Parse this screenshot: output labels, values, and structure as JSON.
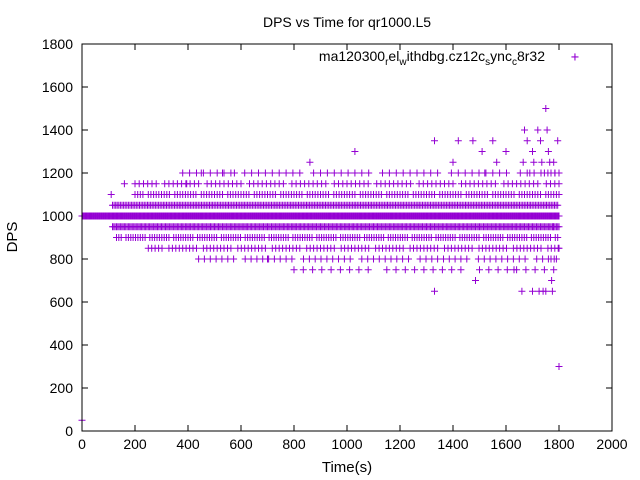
{
  "chart_data": {
    "type": "scatter",
    "title": "DPS vs Time for qr1000.L5",
    "xlabel": "Time(s)",
    "ylabel": "DPS",
    "xlim": [
      0,
      2000
    ],
    "ylim": [
      0,
      1800
    ],
    "xticks": [
      0,
      200,
      400,
      600,
      800,
      1000,
      1200,
      1400,
      1600,
      1800,
      2000
    ],
    "yticks": [
      0,
      200,
      400,
      600,
      800,
      1000,
      1200,
      1400,
      1600,
      1800
    ],
    "grid": false,
    "legend": {
      "position": "top-right",
      "label": "ma120300_rel_withdbg.cz12c_sync_c8r32",
      "label_parts": [
        {
          "text": "ma120300",
          "sub": false
        },
        {
          "text": "r",
          "sub": true
        },
        {
          "text": "el",
          "sub": false
        },
        {
          "text": "w",
          "sub": true
        },
        {
          "text": "ithdbg.cz12c",
          "sub": false
        },
        {
          "text": "s",
          "sub": true
        },
        {
          "text": "ync",
          "sub": false
        },
        {
          "text": "c",
          "sub": true
        },
        {
          "text": "8r32",
          "sub": false
        }
      ]
    },
    "series": [
      {
        "name": "ma120300_rel_withdbg.cz12c_sync_c8r32",
        "color": "#9400d3",
        "marker": "plus",
        "dense_bands": [
          {
            "y": 1000,
            "x_start": 0,
            "x_end": 1800,
            "step": 3
          },
          {
            "y": 950,
            "x_start": 115,
            "x_end": 1800,
            "step": 5
          },
          {
            "y": 1050,
            "x_start": 115,
            "x_end": 1800,
            "step": 6
          },
          {
            "y": 900,
            "x_start": 130,
            "x_end": 1800,
            "step": 9
          },
          {
            "y": 1100,
            "x_start": 200,
            "x_end": 1800,
            "step": 10
          },
          {
            "y": 850,
            "x_start": 250,
            "x_end": 1800,
            "step": 13
          },
          {
            "y": 1150,
            "x_start": 200,
            "x_end": 1800,
            "step": 16
          },
          {
            "y": 800,
            "x_start": 440,
            "x_end": 1800,
            "step": 22
          },
          {
            "y": 1200,
            "x_start": 380,
            "x_end": 1800,
            "step": 26
          },
          {
            "y": 750,
            "x_start": 800,
            "x_end": 1800,
            "step": 35
          }
        ],
        "points": [
          [
            0,
            50
          ],
          [
            110,
            1100
          ],
          [
            160,
            1150
          ],
          [
            395,
            1150
          ],
          [
            450,
            1200
          ],
          [
            530,
            1200
          ],
          [
            575,
            1200
          ],
          [
            700,
            800
          ],
          [
            860,
            1250
          ],
          [
            1030,
            1300
          ],
          [
            1330,
            650
          ],
          [
            1330,
            1350
          ],
          [
            1400,
            1250
          ],
          [
            1420,
            1350
          ],
          [
            1475,
            1350
          ],
          [
            1485,
            700
          ],
          [
            1510,
            1300
          ],
          [
            1520,
            1200
          ],
          [
            1550,
            1350
          ],
          [
            1565,
            1250
          ],
          [
            1600,
            1300
          ],
          [
            1630,
            750
          ],
          [
            1660,
            650
          ],
          [
            1665,
            1250
          ],
          [
            1670,
            1400
          ],
          [
            1680,
            1350
          ],
          [
            1690,
            1200
          ],
          [
            1700,
            650
          ],
          [
            1700,
            1300
          ],
          [
            1705,
            1250
          ],
          [
            1720,
            1400
          ],
          [
            1725,
            650
          ],
          [
            1730,
            1350
          ],
          [
            1735,
            1250
          ],
          [
            1740,
            650
          ],
          [
            1745,
            1200
          ],
          [
            1750,
            1500
          ],
          [
            1750,
            650
          ],
          [
            1755,
            1400
          ],
          [
            1760,
            1300
          ],
          [
            1765,
            1250
          ],
          [
            1770,
            1200
          ],
          [
            1770,
            800
          ],
          [
            1772,
            700
          ],
          [
            1775,
            650
          ],
          [
            1778,
            950
          ],
          [
            1780,
            1250
          ],
          [
            1785,
            1200
          ],
          [
            1790,
            800
          ],
          [
            1795,
            1350
          ],
          [
            1800,
            300
          ],
          [
            1800,
            850
          ],
          [
            1800,
            1200
          ],
          [
            1860,
            1740
          ]
        ]
      }
    ]
  }
}
